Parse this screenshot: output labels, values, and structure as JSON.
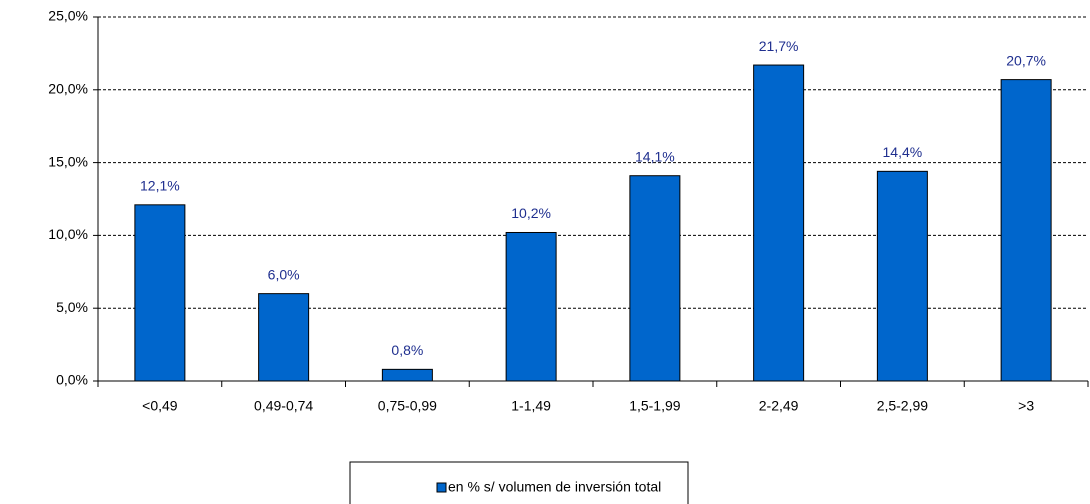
{
  "chart_data": {
    "type": "bar",
    "categories": [
      "<0,49",
      "0,49-0,74",
      "0,75-0,99",
      "1-1,49",
      "1,5-1,99",
      "2-2,49",
      "2,5-2,99",
      ">3"
    ],
    "series": [
      {
        "name": "en % s/ volumen de inversión total",
        "color": "#0066cc",
        "values": [
          12.1,
          6.0,
          0.8,
          10.2,
          14.1,
          21.7,
          14.4,
          20.7
        ],
        "value_labels": [
          "12,1%",
          "6,0%",
          "0,8%",
          "10,2%",
          "14,1%",
          "21,7%",
          "14,4%",
          "20,7%"
        ]
      }
    ],
    "ylim": [
      0,
      25
    ],
    "yticks": [
      {
        "value": 0,
        "label": "0,0%"
      },
      {
        "value": 5,
        "label": "5,0%"
      },
      {
        "value": 10,
        "label": "10,0%"
      },
      {
        "value": 15,
        "label": "15,0%"
      },
      {
        "value": 20,
        "label": "20,0%"
      },
      {
        "value": 25,
        "label": "25,0%"
      }
    ],
    "grid": true,
    "legend": "bottom"
  }
}
